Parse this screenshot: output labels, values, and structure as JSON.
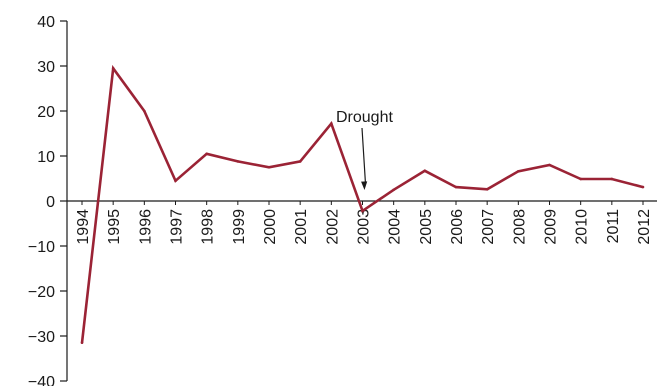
{
  "chart_data": {
    "type": "line",
    "categories": [
      "1994",
      "1995",
      "1996",
      "1997",
      "1998",
      "1999",
      "2000",
      "2001",
      "2002",
      "2003",
      "2004",
      "2005",
      "2006",
      "2007",
      "2008",
      "2009",
      "2010",
      "2011",
      "2012"
    ],
    "series": [
      {
        "values": [
          -31.5,
          29.5,
          20,
          4.5,
          10.5,
          8.8,
          7.5,
          8.8,
          17.2,
          -2.2,
          2.5,
          6.7,
          3.1,
          2.6,
          6.6,
          8,
          4.9,
          4.9,
          3.1
        ],
        "color": "#9b2335"
      }
    ],
    "ylim": [
      -40,
      40
    ],
    "yticks": [
      40,
      30,
      20,
      10,
      0,
      -10,
      -20,
      -30,
      -40
    ],
    "ytick_labels": [
      "40",
      "30",
      "20",
      "10",
      "0",
      "−10",
      "−20",
      "−30",
      "−40"
    ],
    "annotations": [
      {
        "text": "Drought",
        "target_category": "2003",
        "target_value": 2
      }
    ],
    "grid": false,
    "title": "",
    "xlabel": "",
    "ylabel": ""
  }
}
